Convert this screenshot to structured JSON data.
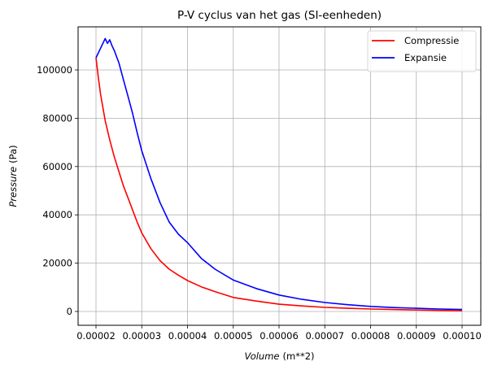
{
  "chart_data": {
    "type": "line",
    "title": "P-V cyclus van het gas (SI-eenheden)",
    "xlabel": "Volume (m**2)",
    "xlabel_italic": "Volume",
    "xlabel_unit": "(m**2)",
    "ylabel": "Pressure (Pa)",
    "ylabel_italic": "Pressure",
    "ylabel_unit": "(Pa)",
    "xlim": [
      1.55e-05,
      0.0001042
    ],
    "ylim": [
      -5800,
      119000
    ],
    "grid": true,
    "legend_position": "upper right",
    "x_ticks": [
      2e-05,
      3e-05,
      4e-05,
      5e-05,
      6e-05,
      7e-05,
      8e-05,
      9e-05,
      0.0001
    ],
    "x_tick_labels": [
      "0.00002",
      "0.00003",
      "0.00004",
      "0.00005",
      "0.00006",
      "0.00007",
      "0.00008",
      "0.00009",
      "0.00010"
    ],
    "y_ticks": [
      0,
      20000,
      40000,
      60000,
      80000,
      100000
    ],
    "y_tick_labels": [
      "0",
      "20000",
      "40000",
      "60000",
      "80000",
      "100000"
    ],
    "series": [
      {
        "name": "Compressie",
        "color": "#ff0000",
        "x": [
          2e-05,
          2.05e-05,
          2.1e-05,
          2.2e-05,
          2.3e-05,
          2.4e-05,
          2.5e-05,
          2.6e-05,
          2.7e-05,
          2.8e-05,
          2.9e-05,
          3e-05,
          3.2e-05,
          3.4e-05,
          3.6e-05,
          3.8e-05,
          4e-05,
          4.3e-05,
          4.6e-05,
          5e-05,
          5.5e-05,
          6e-05,
          6.5e-05,
          7e-05,
          7.5e-05,
          8e-05,
          8.5e-05,
          9e-05,
          9.5e-05,
          0.0001
        ],
        "y": [
          105000,
          97000,
          90000,
          79000,
          71000,
          64000,
          58000,
          52000,
          47000,
          42000,
          37000,
          32500,
          26000,
          21000,
          17500,
          15000,
          12800,
          10200,
          8200,
          5800,
          4300,
          3000,
          2300,
          1700,
          1300,
          1000,
          800,
          600,
          450,
          300
        ]
      },
      {
        "name": "Expansie",
        "color": "#0000ff",
        "x": [
          2e-05,
          2.1e-05,
          2.2e-05,
          2.25e-05,
          2.3e-05,
          2.35e-05,
          2.4e-05,
          2.5e-05,
          2.6e-05,
          2.7e-05,
          2.8e-05,
          2.9e-05,
          3e-05,
          3.2e-05,
          3.4e-05,
          3.6e-05,
          3.8e-05,
          4e-05,
          4.3e-05,
          4.6e-05,
          5e-05,
          5.5e-05,
          6e-05,
          6.5e-05,
          7e-05,
          7.5e-05,
          8e-05,
          8.5e-05,
          9e-05,
          9.5e-05,
          0.0001
        ],
        "y": [
          105000,
          109000,
          113000,
          111000,
          112500,
          110000,
          108000,
          103000,
          96000,
          89000,
          82000,
          74000,
          66500,
          55000,
          45000,
          37000,
          32000,
          28500,
          22000,
          17500,
          13000,
          9500,
          6800,
          5000,
          3700,
          2800,
          2100,
          1600,
          1300,
          1000,
          800
        ]
      }
    ]
  }
}
